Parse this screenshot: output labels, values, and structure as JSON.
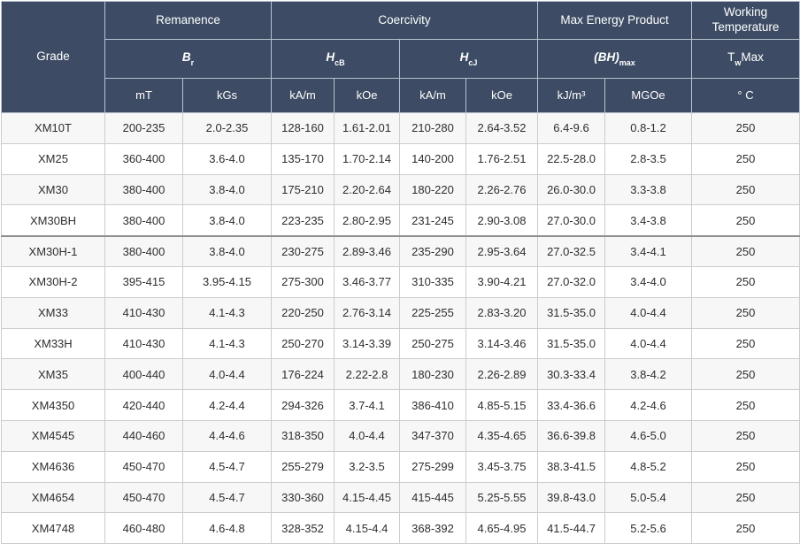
{
  "chart_data": {
    "type": "table",
    "header": {
      "grade": "Grade",
      "groups": {
        "remanence": "Remanence",
        "coercivity": "Coercivity",
        "max_energy_product": "Max Energy Product",
        "working_temperature": "Working Temperature"
      },
      "symbols": {
        "br": {
          "main": "B",
          "sub": "r"
        },
        "hcb": {
          "main": "H",
          "sub": "cB"
        },
        "hcj": {
          "main": "H",
          "sub": "cJ"
        },
        "bhmax": {
          "main": "(BH)",
          "sub": "max"
        },
        "twmax": {
          "main": "T",
          "sub": "w",
          "after": "Max"
        }
      },
      "units": [
        "mT",
        "kGs",
        "kA/m",
        "kOe",
        "kA/m",
        "kOe",
        "kJ/m³",
        "MGOe",
        "° C"
      ]
    },
    "rows": [
      [
        "XM10T",
        "200-235",
        "2.0-2.35",
        "128-160",
        "1.61-2.01",
        "210-280",
        "2.64-3.52",
        "6.4-9.6",
        "0.8-1.2",
        "250"
      ],
      [
        "XM25",
        "360-400",
        "3.6-4.0",
        "135-170",
        "1.70-2.14",
        "140-200",
        "1.76-2.51",
        "22.5-28.0",
        "2.8-3.5",
        "250"
      ],
      [
        "XM30",
        "380-400",
        "3.8-4.0",
        "175-210",
        "2.20-2.64",
        "180-220",
        "2.26-2.76",
        "26.0-30.0",
        "3.3-3.8",
        "250"
      ],
      [
        "XM30BH",
        "380-400",
        "3.8-4.0",
        "223-235",
        "2.80-2.95",
        "231-245",
        "2.90-3.08",
        "27.0-30.0",
        "3.4-3.8",
        "250"
      ],
      [
        "XM30H-1",
        "380-400",
        "3.8-4.0",
        "230-275",
        "2.89-3.46",
        "235-290",
        "2.95-3.64",
        "27.0-32.5",
        "3.4-4.1",
        "250"
      ],
      [
        "XM30H-2",
        "395-415",
        "3.95-4.15",
        "275-300",
        "3.46-3.77",
        "310-335",
        "3.90-4.21",
        "27.0-32.0",
        "3.4-4.0",
        "250"
      ],
      [
        "XM33",
        "410-430",
        "4.1-4.3",
        "220-250",
        "2.76-3.14",
        "225-255",
        "2.83-3.20",
        "31.5-35.0",
        "4.0-4.4",
        "250"
      ],
      [
        "XM33H",
        "410-430",
        "4.1-4.3",
        "250-270",
        "3.14-3.39",
        "250-275",
        "3.14-3.46",
        "31.5-35.0",
        "4.0-4.4",
        "250"
      ],
      [
        "XM35",
        "400-440",
        "4.0-4.4",
        "176-224",
        "2.22-2.8",
        "180-230",
        "2.26-2.89",
        "30.3-33.4",
        "3.8-4.2",
        "250"
      ],
      [
        "XM4350",
        "420-440",
        "4.2-4.4",
        "294-326",
        "3.7-4.1",
        "386-410",
        "4.85-5.15",
        "33.4-36.6",
        "4.2-4.6",
        "250"
      ],
      [
        "XM4545",
        "440-460",
        "4.4-4.6",
        "318-350",
        "4.0-4.4",
        "347-370",
        "4.35-4.65",
        "36.6-39.8",
        "4.6-5.0",
        "250"
      ],
      [
        "XM4636",
        "450-470",
        "4.5-4.7",
        "255-279",
        "3.2-3.5",
        "275-299",
        "3.45-3.75",
        "38.3-41.5",
        "4.8-5.2",
        "250"
      ],
      [
        "XM4654",
        "450-470",
        "4.5-4.7",
        "330-360",
        "4.15-4.45",
        "415-445",
        "5.25-5.55",
        "39.8-43.0",
        "5.0-5.4",
        "250"
      ],
      [
        "XM4748",
        "460-480",
        "4.6-4.8",
        "328-352",
        "4.15-4.4",
        "368-392",
        "4.65-4.95",
        "41.5-44.7",
        "5.2-5.6",
        "250"
      ]
    ],
    "layout": {
      "separator_above_row": "XM30H-1",
      "colors": {
        "header_bg": "#3d4c64",
        "header_text": "#ffffff",
        "stripe": "#f7f7f7",
        "separator": "#8f8f8f",
        "grid": "#cccccc"
      }
    }
  }
}
